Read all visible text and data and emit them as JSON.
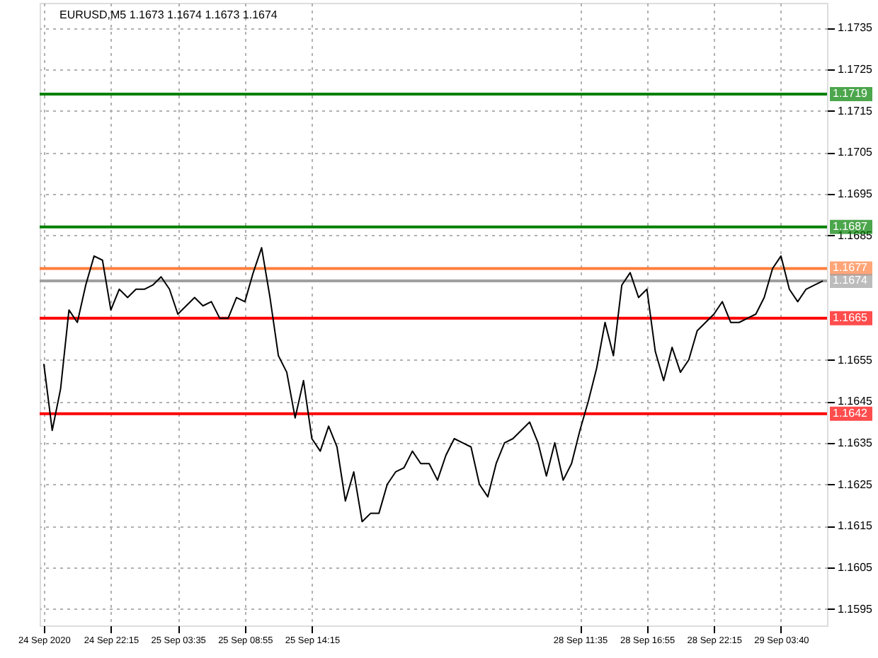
{
  "chart_data": {
    "type": "line",
    "title": "EURUSD,M5  1.1673 1.1674 1.1673 1.1674",
    "categories": [
      "24 Sep 2020",
      null,
      null,
      null,
      null,
      null,
      null,
      null,
      "24 Sep 22:15",
      null,
      null,
      null,
      null,
      null,
      null,
      null,
      "25 Sep 03:35",
      null,
      null,
      null,
      null,
      null,
      null,
      null,
      "25 Sep 08:55",
      null,
      null,
      null,
      null,
      null,
      null,
      null,
      "25 Sep 14:15",
      null,
      null,
      null,
      null,
      null,
      null,
      null,
      null,
      null,
      null,
      null,
      null,
      null,
      null,
      null,
      null,
      null,
      null,
      null,
      null,
      null,
      null,
      null,
      null,
      null,
      null,
      null,
      null,
      null,
      null,
      null,
      "28 Sep 11:35",
      null,
      null,
      null,
      null,
      null,
      null,
      null,
      "28 Sep 16:55",
      null,
      null,
      null,
      null,
      null,
      null,
      null,
      "28 Sep 22:15",
      null,
      null,
      null,
      null,
      null,
      null,
      null,
      "29 Sep 03:40",
      null,
      null,
      null,
      null,
      null
    ],
    "series": [
      {
        "color": "#000000",
        "values": [
          1.1654,
          1.1638,
          1.1648,
          1.1667,
          1.1664,
          1.1673,
          1.168,
          1.1679,
          1.1667,
          1.1672,
          1.167,
          1.1672,
          1.1672,
          1.1673,
          1.1675,
          1.1672,
          1.1666,
          1.1668,
          1.167,
          1.1668,
          1.1669,
          1.1665,
          1.1665,
          1.167,
          1.1669,
          1.1676,
          1.1682,
          1.167,
          1.1656,
          1.1652,
          1.1641,
          1.165,
          1.1636,
          1.1633,
          1.1639,
          1.1634,
          1.1621,
          1.1628,
          1.1616,
          1.1618,
          1.1618,
          1.1625,
          1.1628,
          1.1629,
          1.1633,
          1.163,
          1.163,
          1.1626,
          1.1632,
          1.1636,
          1.1635,
          1.1634,
          1.1625,
          1.1622,
          1.163,
          1.1635,
          1.1636,
          1.1638,
          1.164,
          1.1635,
          1.1627,
          1.1635,
          1.1626,
          1.163,
          1.1638,
          1.1645,
          1.1653,
          1.1664,
          1.1656,
          1.1673,
          1.1676,
          1.167,
          1.1672,
          1.1657,
          1.165,
          1.1658,
          1.1652,
          1.1655,
          1.1662,
          1.1664,
          1.1666,
          1.1669,
          1.1664,
          1.1664,
          1.1665,
          1.1666,
          1.167,
          1.1677,
          1.168,
          1.1672,
          1.1669,
          1.1672,
          1.1673,
          1.1674
        ]
      }
    ],
    "ylim": [
      1.1591,
      1.1741
    ],
    "yticks": [
      1.1595,
      1.1605,
      1.1615,
      1.1625,
      1.1635,
      1.1645,
      1.1655,
      1.1685,
      1.1695,
      1.1705,
      1.1715,
      1.1725,
      1.1735
    ],
    "grid": true,
    "marker": "none",
    "line_style": "solid",
    "ref_lines": [
      {
        "axis": "y",
        "value": 1.1719,
        "label": "1.1719",
        "color": "#008000"
      },
      {
        "axis": "y",
        "value": 1.1687,
        "label": "1.1687",
        "color": "#008000"
      },
      {
        "axis": "y",
        "value": 1.1677,
        "label": "1.1677",
        "color": "#ff7f3f"
      },
      {
        "axis": "y",
        "value": 1.1674,
        "label": "1.1674",
        "color": "#a0a0a0"
      },
      {
        "axis": "y",
        "value": 1.1665,
        "label": "1.1665",
        "color": "#ff0000"
      },
      {
        "axis": "y",
        "value": 1.1642,
        "label": "1.1642",
        "color": "#ff0000"
      }
    ]
  }
}
